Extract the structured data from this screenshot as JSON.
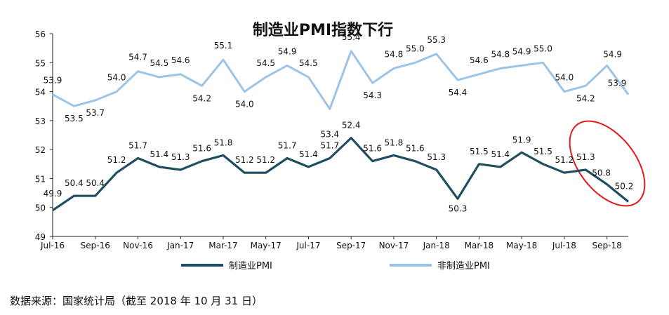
{
  "chart_data": {
    "type": "line",
    "title": "制造业PMI指数下行",
    "ylim": [
      49,
      56
    ],
    "yticks": [
      49,
      50,
      51,
      52,
      53,
      54,
      55,
      56
    ],
    "xtick_labels": [
      "Jul-16",
      "Sep-16",
      "Nov-16",
      "Jan-17",
      "Mar-17",
      "May-17",
      "Jul-17",
      "Sep-17",
      "Nov-17",
      "Jan-18",
      "Mar-18",
      "May-18",
      "Jul-18",
      "Sep-18"
    ],
    "categories": [
      "Jul-16",
      "Aug-16",
      "Sep-16",
      "Oct-16",
      "Nov-16",
      "Dec-16",
      "Jan-17",
      "Feb-17",
      "Mar-17",
      "Apr-17",
      "May-17",
      "Jun-17",
      "Jul-17",
      "Aug-17",
      "Sep-17",
      "Oct-17",
      "Nov-17",
      "Dec-17",
      "Jan-18",
      "Feb-18",
      "Mar-18",
      "Apr-18",
      "May-18",
      "Jun-18",
      "Jul-18",
      "Aug-18",
      "Sep-18",
      "Oct-18"
    ],
    "series": [
      {
        "name": "制造业PMI",
        "color": "#1f4e5f",
        "values": [
          49.9,
          50.4,
          50.4,
          51.2,
          51.7,
          51.4,
          51.3,
          51.6,
          51.8,
          51.2,
          51.2,
          51.7,
          51.4,
          51.7,
          52.4,
          51.6,
          51.8,
          51.6,
          51.3,
          50.3,
          51.5,
          51.4,
          51.9,
          51.5,
          51.2,
          51.3,
          50.8,
          50.2
        ]
      },
      {
        "name": "非制造业PMI",
        "color": "#9dc3e6",
        "values": [
          53.9,
          53.5,
          53.7,
          54.0,
          54.7,
          54.5,
          54.6,
          54.2,
          55.1,
          54.0,
          54.5,
          54.9,
          54.5,
          53.4,
          55.4,
          54.3,
          54.8,
          55.0,
          55.3,
          54.4,
          54.6,
          54.8,
          54.9,
          55.0,
          54.0,
          54.2,
          54.9,
          53.9
        ]
      }
    ],
    "annotation": {
      "type": "ellipse",
      "color": "#e31a1c",
      "highlights": [
        "Aug-18",
        "Sep-18",
        "Oct-18"
      ]
    },
    "legend_position": "bottom",
    "grid": false
  },
  "source_note": "数据来源：国家统计局（截至 2018 年 10 月 31 日）"
}
